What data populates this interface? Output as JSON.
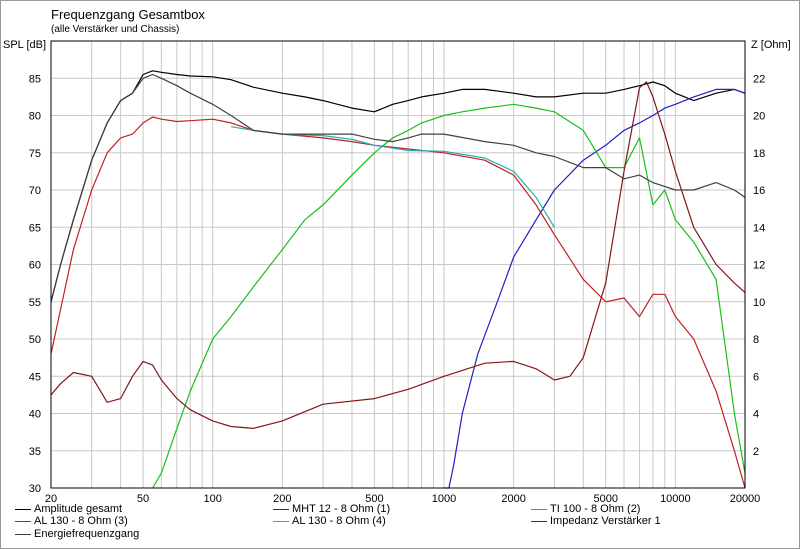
{
  "header": {
    "title": "Frequenzgang Gesamtbox",
    "subtitle": "(alle Verstärker und Chassis)"
  },
  "chart_data": {
    "type": "line",
    "title": "Frequenzgang Gesamtbox",
    "subtitle": "(alle Verstärker und Chassis)",
    "xlabel": "",
    "ylabel_left": "SPL [dB]",
    "ylabel_right": "Z [Ohm]",
    "x_scale": "log",
    "xlim": [
      20,
      20000
    ],
    "ylim_left": [
      30,
      90
    ],
    "ylim_right": [
      0,
      24
    ],
    "x_ticks": [
      20,
      50,
      100,
      200,
      500,
      1000,
      2000,
      5000,
      10000,
      20000
    ],
    "x_ticklabels": [
      "20",
      "50",
      "100",
      "200",
      "500",
      "1000",
      "2000",
      "5000",
      "10000",
      "20000"
    ],
    "y_left_ticks": [
      30,
      35,
      40,
      45,
      50,
      55,
      60,
      65,
      70,
      75,
      80,
      85
    ],
    "y_right_ticks": [
      2,
      4,
      6,
      8,
      10,
      12,
      14,
      16,
      18,
      20,
      22
    ],
    "grid": true,
    "legend_position": "bottom",
    "series": [
      {
        "name": "Amplitude gesamt",
        "color": "#000000",
        "axis": "left",
        "x": [
          20,
          22,
          25,
          30,
          35,
          40,
          45,
          50,
          55,
          60,
          70,
          80,
          100,
          120,
          150,
          200,
          250,
          300,
          400,
          500,
          600,
          700,
          800,
          1000,
          1200,
          1500,
          2000,
          2500,
          3000,
          4000,
          5000,
          6000,
          7000,
          8000,
          9000,
          10000,
          12000,
          15000,
          18000,
          20000
        ],
        "y": [
          55,
          60,
          66,
          74,
          79,
          82,
          83,
          85.5,
          86,
          85.8,
          85.5,
          85.3,
          85.2,
          84.8,
          83.8,
          83,
          82.5,
          82,
          81,
          80.5,
          81.5,
          82,
          82.5,
          83,
          83.5,
          83.5,
          83,
          82.5,
          82.5,
          83,
          83,
          83.5,
          84,
          84.5,
          84,
          83,
          82,
          83,
          83.5,
          83
        ]
      },
      {
        "name": "MHT 12 - 8 Ohm (1)",
        "color": "#2020c0",
        "axis": "left",
        "x": [
          1000,
          1050,
          1100,
          1200,
          1400,
          1700,
          2000,
          2500,
          3000,
          4000,
          5000,
          6000,
          7000,
          8000,
          9000,
          10000,
          12000,
          15000,
          18000,
          20000
        ],
        "y": [
          30,
          30,
          33,
          40,
          48,
          55,
          61,
          66,
          70,
          74,
          76,
          78,
          79,
          80,
          81,
          81.5,
          82.5,
          83.5,
          83.5,
          83
        ]
      },
      {
        "name": "TI 100 - 8 Ohm (2)",
        "color": "#18c018",
        "axis": "left",
        "x": [
          55,
          60,
          70,
          80,
          100,
          120,
          150,
          200,
          250,
          300,
          400,
          500,
          600,
          700,
          800,
          1000,
          1200,
          1500,
          2000,
          2500,
          3000,
          4000,
          5000,
          6000,
          7000,
          8000,
          9000,
          10000,
          12000,
          15000,
          18000,
          20000
        ],
        "y": [
          30,
          32,
          38,
          43,
          50,
          53,
          57,
          62,
          66,
          68,
          72,
          75,
          77,
          78,
          79,
          80,
          80.5,
          81,
          81.5,
          81,
          80.5,
          78,
          73,
          73,
          77,
          68,
          70,
          66,
          63,
          58,
          40,
          32
        ]
      },
      {
        "name": "AL 130 - 8 Ohm (3)",
        "color": "#c02020",
        "axis": "left",
        "x": [
          20,
          22,
          25,
          30,
          35,
          40,
          45,
          50,
          55,
          60,
          70,
          80,
          100,
          120,
          150,
          200,
          300,
          400,
          500,
          700,
          1000,
          1500,
          2000,
          2500,
          3000,
          4000,
          5000,
          6000,
          7000,
          8000,
          9000,
          10000,
          12000,
          15000,
          18000,
          20000
        ],
        "y": [
          48,
          54,
          62,
          70,
          75,
          77,
          77.5,
          79,
          79.8,
          79.5,
          79.2,
          79.3,
          79.5,
          79,
          78,
          77.5,
          77,
          76.5,
          76,
          75.5,
          75,
          74,
          72,
          68,
          64,
          58,
          55,
          55.5,
          53,
          56,
          56,
          53,
          50,
          43,
          35,
          30
        ]
      },
      {
        "name": "AL 130 - 8 Ohm (4)",
        "color": "#20b0b0",
        "axis": "left",
        "x": [
          120,
          150,
          200,
          300,
          400,
          500,
          700,
          1000,
          1500,
          2000,
          2500,
          3000
        ],
        "y": [
          78.5,
          78,
          77.5,
          77.3,
          76.8,
          76,
          75.3,
          75.2,
          74.3,
          72.5,
          69,
          65
        ]
      },
      {
        "name": "Impedanz Verstärker 1",
        "color": "#801818",
        "axis": "right",
        "x": [
          20,
          22,
          25,
          30,
          35,
          40,
          45,
          50,
          55,
          60,
          70,
          80,
          100,
          120,
          150,
          200,
          300,
          500,
          700,
          1000,
          1500,
          2000,
          2500,
          3000,
          3500,
          4000,
          5000,
          6000,
          7000,
          7500,
          8000,
          9000,
          10000,
          12000,
          15000,
          18000,
          20000
        ],
        "y": [
          5,
          5.6,
          6.2,
          6,
          4.6,
          4.8,
          6,
          6.8,
          6.6,
          5.8,
          4.8,
          4.2,
          3.6,
          3.3,
          3.2,
          3.6,
          4.5,
          4.8,
          5.3,
          6,
          6.7,
          6.8,
          6.4,
          5.8,
          6,
          7,
          11,
          17,
          21.5,
          21.8,
          21,
          19,
          17,
          14,
          12,
          11,
          10.5
        ]
      },
      {
        "name": "Energiefrequenzgang",
        "color": "#404040",
        "axis": "left",
        "x": [
          20,
          22,
          25,
          30,
          35,
          40,
          45,
          50,
          55,
          60,
          70,
          80,
          100,
          120,
          150,
          200,
          300,
          400,
          500,
          600,
          700,
          800,
          1000,
          1500,
          2000,
          2500,
          3000,
          4000,
          5000,
          6000,
          7000,
          8000,
          10000,
          12000,
          15000,
          18000,
          20000
        ],
        "y": [
          55,
          60,
          66,
          74,
          79,
          82,
          83,
          85,
          85.5,
          85,
          84,
          83,
          81.5,
          80,
          78,
          77.5,
          77.5,
          77.5,
          76.8,
          76.5,
          77,
          77.5,
          77.5,
          76.5,
          76,
          75,
          74.5,
          73,
          73,
          71.5,
          72,
          71,
          70,
          70,
          71,
          70,
          69
        ]
      }
    ]
  },
  "legend": {
    "items": [
      {
        "label": "Amplitude gesamt",
        "color": "#000000"
      },
      {
        "label": "MHT 12 - 8 Ohm (1)",
        "color": "#2020c0"
      },
      {
        "label": "TI 100 - 8 Ohm (2)",
        "color": "#18c018"
      },
      {
        "label": "AL 130 - 8 Ohm (3)",
        "color": "#c02020"
      },
      {
        "label": "AL 130 - 8 Ohm (4)",
        "color": "#20b0b0"
      },
      {
        "label": "Impedanz Verstärker 1",
        "color": "#801818"
      },
      {
        "label": "Energiefrequenzgang",
        "color": "#404040"
      }
    ]
  }
}
